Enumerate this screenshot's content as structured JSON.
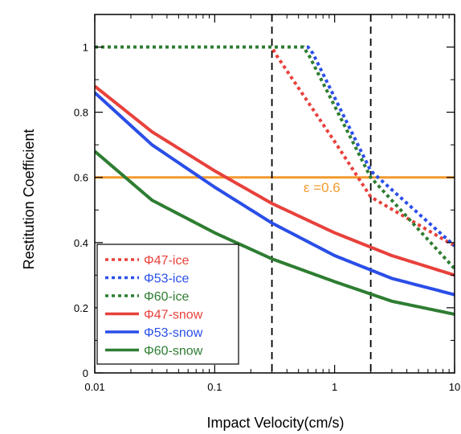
{
  "chart_data": {
    "type": "line",
    "xlabel": "Impact Velocity(cm/s)",
    "ylabel": "Restitution Coefficient",
    "xscale": "log",
    "xlim": [
      0.01,
      10
    ],
    "ylim": [
      0,
      1.1
    ],
    "x_ticks": [
      {
        "value": 0.01,
        "label": "0.01"
      },
      {
        "value": 0.1,
        "label": "0.1"
      },
      {
        "value": 1,
        "label": "1"
      },
      {
        "value": 10,
        "label": "10"
      }
    ],
    "y_ticks": [
      {
        "value": 0,
        "label": "0"
      },
      {
        "value": 0.2,
        "label": "0.2"
      },
      {
        "value": 0.4,
        "label": "0.4"
      },
      {
        "value": 0.6,
        "label": "0.6"
      },
      {
        "value": 0.8,
        "label": "0.8"
      },
      {
        "value": 1,
        "label": "1"
      }
    ],
    "legend_position": "bottom-left",
    "series": [
      {
        "name": "Φ47-ice",
        "color": "#e8413c",
        "style": "dotted",
        "x": [
          0.01,
          0.3,
          0.32,
          1,
          2,
          10
        ],
        "y": [
          1,
          1,
          0.98,
          0.71,
          0.54,
          0.39
        ]
      },
      {
        "name": "Φ53-ice",
        "color": "#2a4ee8",
        "style": "dotted",
        "x": [
          0.01,
          0.6,
          0.66,
          2,
          10
        ],
        "y": [
          1,
          1,
          0.98,
          0.62,
          0.39
        ]
      },
      {
        "name": "Φ60-ice",
        "color": "#2e7d32",
        "style": "dotted",
        "x": [
          0.01,
          0.55,
          0.62,
          2,
          10
        ],
        "y": [
          1,
          1,
          0.97,
          0.6,
          0.32
        ]
      },
      {
        "name": "Φ47-snow",
        "color": "#e8413c",
        "style": "solid",
        "x": [
          0.01,
          0.03,
          0.1,
          0.3,
          1,
          3,
          10
        ],
        "y": [
          0.88,
          0.74,
          0.62,
          0.52,
          0.43,
          0.36,
          0.3
        ]
      },
      {
        "name": "Φ53-snow",
        "color": "#2a4ee8",
        "style": "solid",
        "x": [
          0.01,
          0.03,
          0.1,
          0.3,
          1,
          3,
          10
        ],
        "y": [
          0.86,
          0.7,
          0.57,
          0.46,
          0.36,
          0.29,
          0.24
        ]
      },
      {
        "name": "Φ60-snow",
        "color": "#2e7d32",
        "style": "solid",
        "x": [
          0.01,
          0.03,
          0.1,
          0.3,
          1,
          3,
          10
        ],
        "y": [
          0.68,
          0.53,
          0.43,
          0.35,
          0.28,
          0.22,
          0.18
        ]
      }
    ],
    "reference_lines": [
      {
        "orientation": "horizontal",
        "value": 0.6,
        "color": "#f39a2d",
        "style": "solid"
      },
      {
        "orientation": "vertical",
        "value": 0.3,
        "color": "#000000",
        "style": "dashed"
      },
      {
        "orientation": "vertical",
        "value": 2,
        "color": "#000000",
        "style": "dashed"
      }
    ],
    "annotations": [
      {
        "text": "ε =0.6",
        "x": 0.55,
        "y": 0.555,
        "color": "#f39a2d"
      }
    ]
  }
}
